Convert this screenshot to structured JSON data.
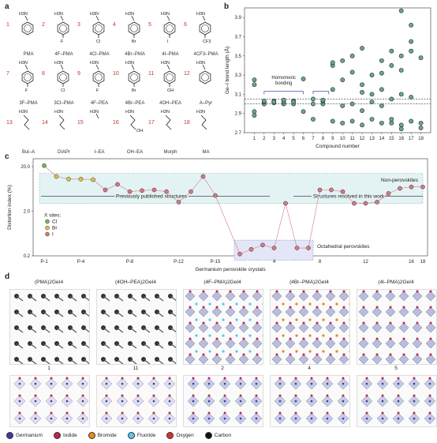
{
  "panels": {
    "a": "a",
    "b": "b",
    "c": "c",
    "d": "d"
  },
  "molecules": [
    {
      "n": "1",
      "name": "PMA",
      "sub": ""
    },
    {
      "n": "2",
      "name": "4F–PMA",
      "sub": "F"
    },
    {
      "n": "3",
      "name": "4Cl–PMA",
      "sub": "Cl"
    },
    {
      "n": "4",
      "name": "4Br–PMA",
      "sub": "Br"
    },
    {
      "n": "5",
      "name": "4I–PMA",
      "sub": "I"
    },
    {
      "n": "6",
      "name": "4CF3–PMA",
      "sub": "CF3"
    },
    {
      "n": "7",
      "name": "3F–PMA",
      "sub": "F"
    },
    {
      "n": "8",
      "name": "3Cl–PMA",
      "sub": "Cl"
    },
    {
      "n": "9",
      "name": "4F–PEA",
      "sub": "F"
    },
    {
      "n": "10",
      "name": "4Br–PEA",
      "sub": "Br"
    },
    {
      "n": "11",
      "name": "4OH–PEA",
      "sub": "OH"
    },
    {
      "n": "12",
      "name": "A–Pyr",
      "sub": ""
    },
    {
      "n": "13",
      "name": "But–A",
      "sub": ""
    },
    {
      "n": "14",
      "name": "DIAPr",
      "sub": ""
    },
    {
      "n": "15",
      "name": "I–EA",
      "sub": "I"
    },
    {
      "n": "16",
      "name": "OH–EA",
      "sub": "OH"
    },
    {
      "n": "17",
      "name": "Morph",
      "sub": ""
    },
    {
      "n": "18",
      "name": "MA",
      "sub": ""
    }
  ],
  "chart_data": [
    {
      "type": "scatter",
      "panel": "b",
      "xlabel": "Compound number",
      "ylabel": "Ge–I bond length (Å)",
      "xlim": [
        0,
        19
      ],
      "ylim": [
        2.7,
        4.0
      ],
      "yticks": [
        2.7,
        2.9,
        3.1,
        3.3,
        3.5,
        3.7,
        3.9
      ],
      "xticks": [
        1,
        2,
        3,
        4,
        5,
        6,
        7,
        8,
        9,
        10,
        11,
        12,
        13,
        14,
        15,
        16,
        17,
        18
      ],
      "annotation": "Homomeric bonding",
      "reference_lines": [
        3.0,
        3.05
      ],
      "points": [
        [
          1,
          2.88
        ],
        [
          1,
          2.92
        ],
        [
          1,
          3.2
        ],
        [
          1,
          3.25
        ],
        [
          2,
          3.0
        ],
        [
          2,
          3.02
        ],
        [
          2,
          3.03
        ],
        [
          3,
          3.01
        ],
        [
          3,
          3.03
        ],
        [
          3,
          3.02
        ],
        [
          4,
          3.0
        ],
        [
          4,
          3.02
        ],
        [
          4,
          3.04
        ],
        [
          5,
          3.0
        ],
        [
          5,
          3.03
        ],
        [
          5,
          3.02
        ],
        [
          6,
          2.92
        ],
        [
          6,
          3.26
        ],
        [
          7,
          2.84
        ],
        [
          7,
          3.0
        ],
        [
          7,
          3.05
        ],
        [
          8,
          3.0
        ],
        [
          8,
          3.03
        ],
        [
          8,
          3.04
        ],
        [
          9,
          2.82
        ],
        [
          9,
          3.15
        ],
        [
          9,
          3.4
        ],
        [
          9,
          3.43
        ],
        [
          10,
          2.8
        ],
        [
          10,
          2.98
        ],
        [
          10,
          3.25
        ],
        [
          10,
          3.45
        ],
        [
          11,
          2.82
        ],
        [
          11,
          3.0
        ],
        [
          11,
          3.33
        ],
        [
          11,
          3.5
        ],
        [
          12,
          2.78
        ],
        [
          12,
          2.93
        ],
        [
          12,
          3.12
        ],
        [
          12,
          3.2
        ],
        [
          12,
          3.58
        ],
        [
          13,
          2.84
        ],
        [
          13,
          3.02
        ],
        [
          13,
          3.1
        ],
        [
          13,
          3.3
        ],
        [
          14,
          2.8
        ],
        [
          14,
          2.98
        ],
        [
          14,
          3.15
        ],
        [
          14,
          3.32
        ],
        [
          14,
          3.45
        ],
        [
          15,
          2.8
        ],
        [
          15,
          2.84
        ],
        [
          15,
          3.05
        ],
        [
          15,
          3.4
        ],
        [
          15,
          3.55
        ],
        [
          16,
          2.78
        ],
        [
          16,
          2.74
        ],
        [
          16,
          3.1
        ],
        [
          16,
          3.35
        ],
        [
          16,
          3.5
        ],
        [
          16,
          3.97
        ],
        [
          17,
          2.82
        ],
        [
          17,
          3.07
        ],
        [
          17,
          3.55
        ],
        [
          17,
          3.65
        ],
        [
          17,
          3.82
        ],
        [
          18,
          2.75
        ],
        [
          18,
          2.8
        ],
        [
          18,
          3.48
        ]
      ]
    },
    {
      "type": "line",
      "panel": "c",
      "ylabel": "Distortion index (%)",
      "xlabel": "Germanium perovskite crystals",
      "yticks": [
        "20.0",
        "2.0",
        "0.2"
      ],
      "xticks": [
        "P-1",
        "P-4",
        "P-8",
        "P-12",
        "P-15",
        "4",
        "8",
        "12",
        "16",
        "18"
      ],
      "legend_title": "X sites:",
      "legend": [
        "Cl",
        "Br",
        "I"
      ],
      "region_labels": [
        "Non-perovskites",
        "Octahedral perovskites"
      ],
      "arrow_labels": [
        "Previously published structures",
        "Structures resolved in this work"
      ],
      "series": [
        {
          "name": "published",
          "values": [
            21,
            12,
            10.5,
            10.5,
            10.2,
            6,
            8,
            5.5,
            5.8,
            6,
            5.5,
            3.2,
            5.5,
            12,
            4.5
          ]
        },
        {
          "name": "this work",
          "values": [
            0.22,
            0.28,
            0.35,
            0.3,
            3,
            0.3,
            0.3,
            6,
            6,
            5.5,
            3,
            3,
            3.2,
            5,
            6.5,
            7,
            7
          ]
        }
      ]
    }
  ],
  "structures": [
    {
      "title": "(PMA)2GeI4",
      "cap": "1"
    },
    {
      "title": "(4OH–PEA)2GeI4",
      "cap": "11"
    },
    {
      "title": "(4F–PMA)2GeI4",
      "cap": "2"
    },
    {
      "title": "(4Br–PMA)2GeI4",
      "cap": "4"
    },
    {
      "title": "(4I–PMA)2GeI4",
      "cap": "5"
    }
  ],
  "atom_legend": [
    {
      "label": "Germanium",
      "color": "#3a3aa0"
    },
    {
      "label": "Iodide",
      "color": "#c0264a"
    },
    {
      "label": "Bromide",
      "color": "#e8891e"
    },
    {
      "label": "Fluoride",
      "color": "#59c7f0"
    },
    {
      "label": "Oxygen",
      "color": "#d83030"
    },
    {
      "label": "Carbon",
      "color": "#111111"
    }
  ]
}
